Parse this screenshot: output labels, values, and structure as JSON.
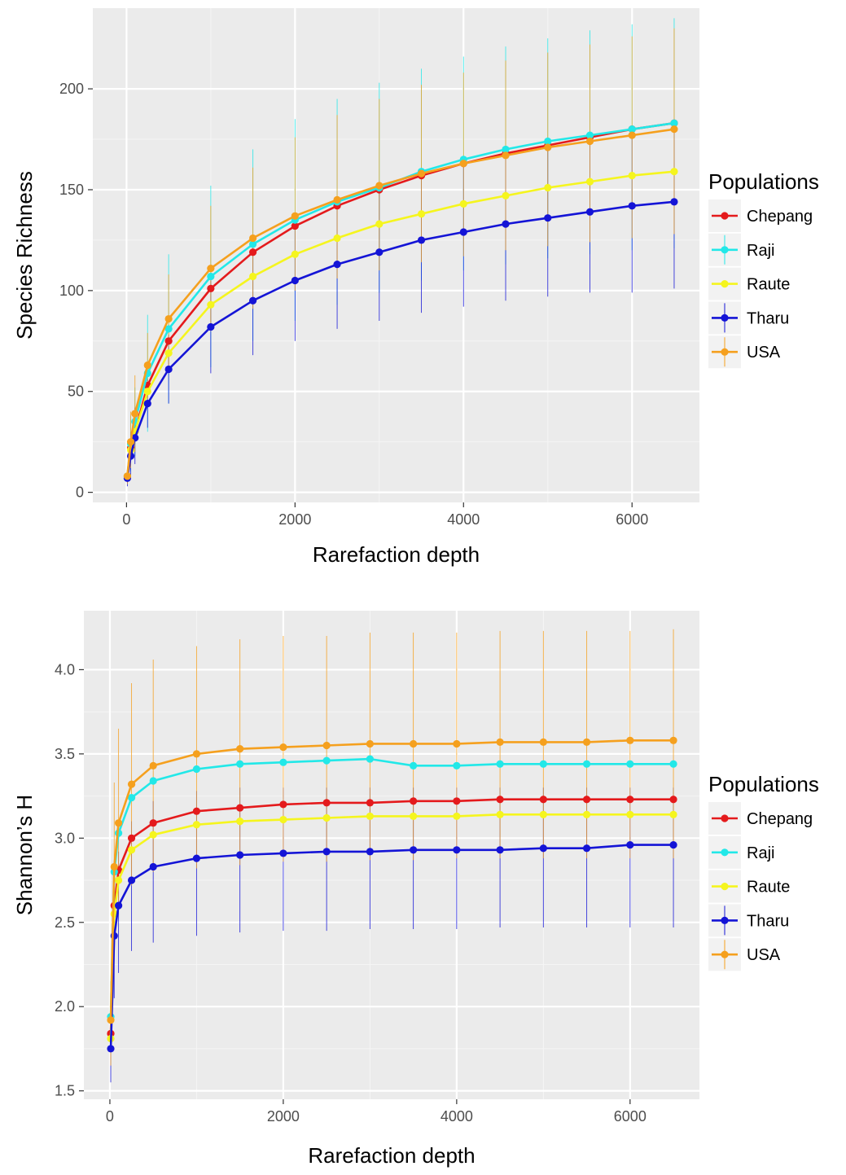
{
  "chart_data": [
    {
      "type": "line",
      "xlabel": "Rarefaction depth",
      "ylabel": "Species Richness",
      "xlim": [
        -400,
        6800
      ],
      "ylim": [
        -5,
        240
      ],
      "x_ticks": [
        0,
        2000,
        4000,
        6000
      ],
      "y_ticks": [
        0,
        50,
        100,
        150,
        200
      ],
      "x_tick_labels": [
        "0",
        "2000",
        "4000",
        "6000"
      ],
      "y_tick_labels": [
        "0",
        "50",
        "100",
        "150",
        "200"
      ],
      "grid": true,
      "legend_title": "Populations",
      "legend_position": "right",
      "x": [
        10,
        50,
        100,
        250,
        500,
        1000,
        1500,
        2000,
        2500,
        3000,
        3500,
        4000,
        4500,
        5000,
        5500,
        6000,
        6500
      ],
      "series": [
        {
          "name": "Chepang",
          "color": "#e41a1c",
          "values": [
            8,
            22,
            30,
            53,
            75,
            101,
            119,
            132,
            142,
            150,
            157,
            163,
            168,
            172,
            176,
            180,
            183
          ]
        },
        {
          "name": "Raji",
          "color": "#22e8e8",
          "values": [
            8,
            24,
            35,
            59,
            81,
            107,
            123,
            135,
            144,
            151,
            159,
            165,
            170,
            174,
            177,
            180,
            183
          ],
          "error": [
            [
              4,
              12
            ],
            [
              10,
              38
            ],
            [
              18,
              52
            ],
            [
              30,
              88
            ],
            [
              44,
              118
            ],
            [
              62,
              152
            ],
            [
              75,
              170
            ],
            [
              85,
              185
            ],
            [
              93,
              195
            ],
            [
              99,
              203
            ],
            [
              105,
              210
            ],
            [
              110,
              216
            ],
            [
              113,
              221
            ],
            [
              116,
              225
            ],
            [
              118,
              229
            ],
            [
              120,
              232
            ],
            [
              121,
              235
            ]
          ]
        },
        {
          "name": "Raute",
          "color": "#f5f51e",
          "values": [
            8,
            21,
            30,
            50,
            69,
            93,
            107,
            118,
            126,
            133,
            138,
            143,
            147,
            151,
            154,
            157,
            159
          ]
        },
        {
          "name": "Tharu",
          "color": "#1414d6",
          "values": [
            7,
            18,
            27,
            44,
            61,
            82,
            95,
            105,
            113,
            119,
            125,
            129,
            133,
            136,
            139,
            142,
            144
          ],
          "error": [
            [
              3,
              11
            ],
            [
              8,
              30
            ],
            [
              14,
              42
            ],
            [
              32,
              56
            ],
            [
              44,
              78
            ],
            [
              59,
              105
            ],
            [
              68,
              122
            ],
            [
              75,
              135
            ],
            [
              81,
              145
            ],
            [
              85,
              152
            ],
            [
              89,
              158
            ],
            [
              92,
              163
            ],
            [
              95,
              167
            ],
            [
              97,
              171
            ],
            [
              99,
              175
            ],
            [
              99,
              180
            ],
            [
              101,
              183
            ]
          ]
        },
        {
          "name": "USA",
          "color": "#f5a01e",
          "values": [
            8,
            25,
            39,
            63,
            86,
            111,
            126,
            137,
            145,
            152,
            158,
            163,
            167,
            171,
            174,
            177,
            180
          ],
          "error": [
            [
              4,
              12
            ],
            [
              12,
              40
            ],
            [
              20,
              58
            ],
            [
              46,
              79
            ],
            [
              62,
              108
            ],
            [
              80,
              142
            ],
            [
              91,
              161
            ],
            [
              100,
              176
            ],
            [
              106,
              187
            ],
            [
              110,
              195
            ],
            [
              114,
              202
            ],
            [
              117,
              208
            ],
            [
              120,
              214
            ],
            [
              122,
              218
            ],
            [
              124,
              222
            ],
            [
              126,
              226
            ],
            [
              128,
              230
            ]
          ]
        }
      ]
    },
    {
      "type": "line",
      "xlabel": "Rarefaction depth",
      "ylabel": "Shannon’s H",
      "xlim": [
        -300,
        6800
      ],
      "ylim": [
        1.45,
        4.35
      ],
      "x_ticks": [
        0,
        2000,
        4000,
        6000
      ],
      "y_ticks": [
        1.5,
        2.0,
        2.5,
        3.0,
        3.5,
        4.0
      ],
      "x_tick_labels": [
        "0",
        "2000",
        "4000",
        "6000"
      ],
      "y_tick_labels": [
        "1.5",
        "2.0",
        "2.5",
        "3.0",
        "3.5",
        "4.0"
      ],
      "grid": true,
      "legend_title": "Populations",
      "legend_position": "right",
      "x": [
        10,
        50,
        100,
        250,
        500,
        1000,
        1500,
        2000,
        2500,
        3000,
        3500,
        4000,
        4500,
        5000,
        5500,
        6000,
        6500
      ],
      "series": [
        {
          "name": "Chepang",
          "color": "#e41a1c",
          "values": [
            1.84,
            2.6,
            2.81,
            3.0,
            3.09,
            3.16,
            3.18,
            3.2,
            3.21,
            3.21,
            3.22,
            3.22,
            3.23,
            3.23,
            3.23,
            3.23,
            3.23
          ]
        },
        {
          "name": "Raji",
          "color": "#22e8e8",
          "values": [
            1.94,
            2.8,
            3.03,
            3.24,
            3.34,
            3.41,
            3.44,
            3.45,
            3.46,
            3.47,
            3.43,
            3.43,
            3.44,
            3.44,
            3.44,
            3.44,
            3.44
          ]
        },
        {
          "name": "Raute",
          "color": "#f5f51e",
          "values": [
            1.81,
            2.55,
            2.75,
            2.93,
            3.02,
            3.08,
            3.1,
            3.11,
            3.12,
            3.13,
            3.13,
            3.13,
            3.14,
            3.14,
            3.14,
            3.14,
            3.14
          ]
        },
        {
          "name": "Tharu",
          "color": "#1414d6",
          "values": [
            1.75,
            2.42,
            2.6,
            2.75,
            2.83,
            2.88,
            2.9,
            2.91,
            2.92,
            2.92,
            2.93,
            2.93,
            2.93,
            2.94,
            2.94,
            2.96,
            2.96
          ],
          "error": [
            [
              1.55,
              1.95
            ],
            [
              2.05,
              2.75
            ],
            [
              2.2,
              2.92
            ],
            [
              2.33,
              3.1
            ],
            [
              2.38,
              3.22
            ],
            [
              2.42,
              3.28
            ],
            [
              2.44,
              3.3
            ],
            [
              2.45,
              3.3
            ],
            [
              2.45,
              3.3
            ],
            [
              2.46,
              3.3
            ],
            [
              2.46,
              3.3
            ],
            [
              2.46,
              3.3
            ],
            [
              2.47,
              3.3
            ],
            [
              2.47,
              3.3
            ],
            [
              2.47,
              3.3
            ],
            [
              2.47,
              3.3
            ],
            [
              2.47,
              3.3
            ]
          ]
        },
        {
          "name": "USA",
          "color": "#f5a01e",
          "values": [
            1.92,
            2.83,
            3.09,
            3.32,
            3.43,
            3.5,
            3.53,
            3.54,
            3.55,
            3.56,
            3.56,
            3.56,
            3.57,
            3.57,
            3.57,
            3.58,
            3.58
          ],
          "error": [
            [
              1.65,
              2.15
            ],
            [
              2.45,
              3.33
            ],
            [
              2.6,
              3.65
            ],
            [
              2.72,
              3.92
            ],
            [
              2.8,
              4.06
            ],
            [
              2.82,
              4.14
            ],
            [
              2.84,
              4.18
            ],
            [
              2.86,
              4.2
            ],
            [
              2.86,
              4.2
            ],
            [
              2.87,
              4.22
            ],
            [
              2.87,
              4.22
            ],
            [
              2.88,
              4.22
            ],
            [
              2.88,
              4.23
            ],
            [
              2.88,
              4.23
            ],
            [
              2.88,
              4.23
            ],
            [
              2.88,
              4.23
            ],
            [
              2.88,
              4.24
            ]
          ]
        }
      ]
    }
  ]
}
